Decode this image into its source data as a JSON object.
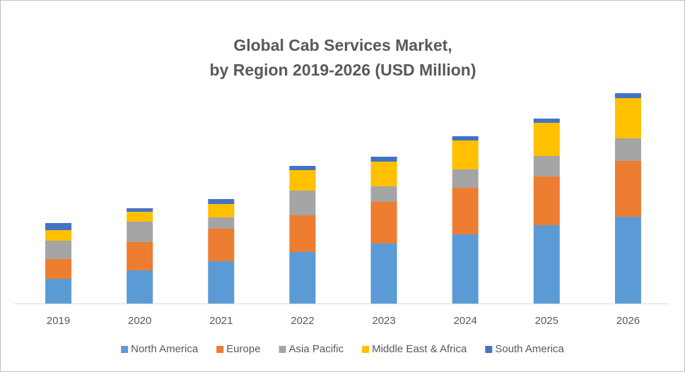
{
  "chart_data": {
    "type": "stacked-bar",
    "title": [
      "Global Cab Services Market,",
      "by Region 2019-2026 (USD Million)"
    ],
    "categories": [
      "2019",
      "2020",
      "2021",
      "2022",
      "2023",
      "2024",
      "2025",
      "2026"
    ],
    "series": [
      {
        "name": "North America",
        "color": "#5b9bd5",
        "values": [
          35,
          47,
          60,
          73,
          85,
          98,
          111,
          123
        ]
      },
      {
        "name": "Europe",
        "color": "#ed7d31",
        "values": [
          28,
          40,
          46,
          52,
          59,
          66,
          69,
          79
        ]
      },
      {
        "name": "Asia Pacific",
        "color": "#a5a5a5",
        "values": [
          26,
          29,
          16,
          35,
          22,
          26,
          29,
          32
        ]
      },
      {
        "name": "Middle East & Africa",
        "color": "#ffc000",
        "values": [
          15,
          14,
          19,
          29,
          35,
          41,
          47,
          57
        ]
      },
      {
        "name": "South America",
        "color": "#4472c4",
        "values": [
          10,
          5,
          7,
          6,
          7,
          6,
          6,
          7
        ]
      }
    ],
    "legend": "bottom"
  }
}
